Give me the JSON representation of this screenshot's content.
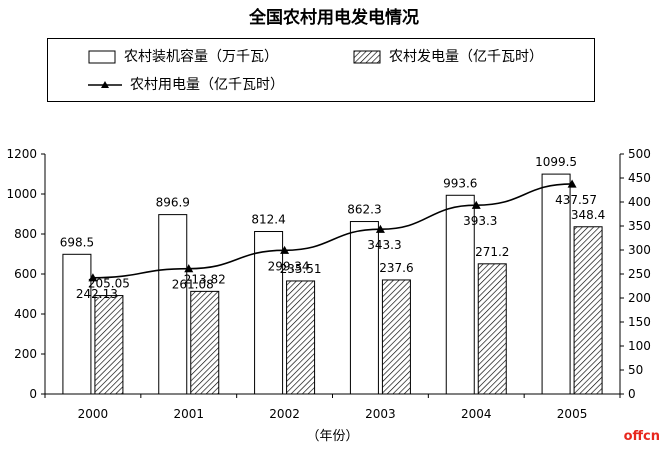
{
  "chart_data": {
    "type": "bar",
    "title": "全国农村用电发电情况",
    "categories": [
      "2000",
      "2001",
      "2002",
      "2003",
      "2004",
      "2005"
    ],
    "xlabel": "（年份）",
    "y_left": {
      "ticks": [
        0,
        200,
        400,
        600,
        800,
        1000,
        1200
      ],
      "range": [
        0,
        1200
      ]
    },
    "y_right": {
      "ticks": [
        0,
        50,
        100,
        150,
        200,
        250,
        300,
        350,
        400,
        450,
        500
      ],
      "range": [
        0,
        500
      ]
    },
    "series": [
      {
        "name": "农村装机容量（万千瓦）",
        "kind": "bar",
        "pattern": "white",
        "axis": "left",
        "values": [
          698.5,
          896.9,
          812.4,
          862.3,
          993.6,
          1099.5
        ],
        "labels": [
          "698.5",
          "896.9",
          "812.4",
          "862.3",
          "993.6",
          "1099.5"
        ]
      },
      {
        "name": "农村发电量（亿千瓦时）",
        "kind": "bar",
        "pattern": "hatched",
        "axis": "right",
        "values": [
          205.05,
          213.82,
          235.51,
          237.6,
          271.2,
          348.4
        ],
        "labels": [
          "205.05",
          "213.82",
          "235.51",
          "237.6",
          "271.2",
          "348.4"
        ]
      },
      {
        "name": "农村用电量（亿千瓦时）",
        "kind": "line",
        "marker": "triangle",
        "axis": "right",
        "values": [
          242.13,
          261.08,
          299.34,
          343.3,
          393.3,
          437.57
        ],
        "labels": [
          "242.13",
          "261.08",
          "299.34",
          "343.3",
          "393.3",
          "437.57"
        ]
      }
    ],
    "legend": "top",
    "grid": false
  },
  "watermark": "offcn",
  "colors": {
    "bar_fill": "#ffffff",
    "stroke": "#000000",
    "hatch": "#000000",
    "watermark": "#e8281e"
  }
}
